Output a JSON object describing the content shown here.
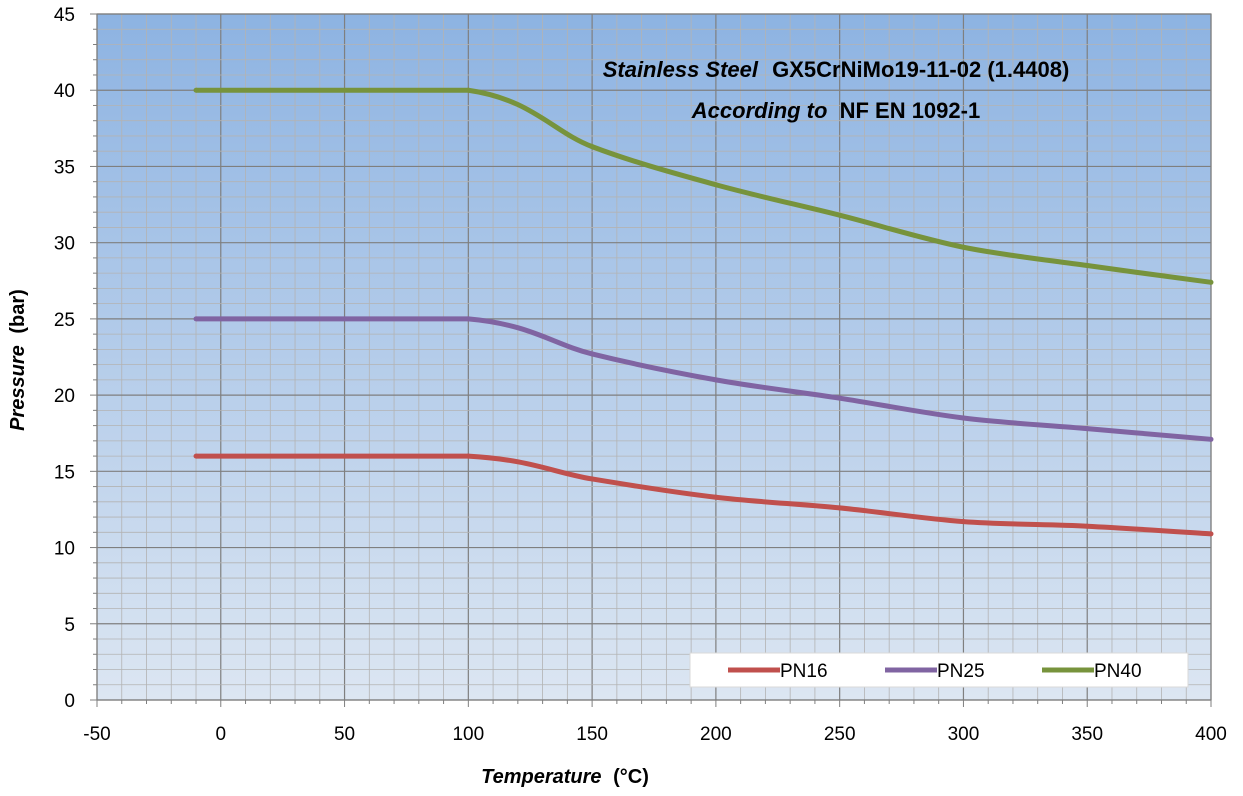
{
  "chart_data": {
    "type": "line",
    "title_line1_italic": "Stainless Steel",
    "title_line1_bold": "GX5CrNiMo19-11-02 (1.4408)",
    "title_line2_italic": "According to",
    "title_line2_bold": "NF EN 1092-1",
    "xlabel_italic": "Temperature",
    "xlabel_unit": "(°C)",
    "ylabel_italic": "Pressure",
    "ylabel_unit": "(bar)",
    "xlim": [
      -50,
      400
    ],
    "ylim": [
      0,
      45
    ],
    "x_major_step": 50,
    "x_minor_step": 10,
    "y_major_step": 5,
    "y_minor_step": 1,
    "grid": true,
    "legend_position": "bottom-right",
    "x_ticks": [
      "-50",
      "0",
      "50",
      "100",
      "150",
      "200",
      "250",
      "300",
      "350",
      "400"
    ],
    "y_ticks": [
      "0",
      "5",
      "10",
      "15",
      "20",
      "25",
      "30",
      "35",
      "40",
      "45"
    ],
    "background_gradient": [
      "#8db3e2",
      "#dce6f2"
    ],
    "series": [
      {
        "name": "PN16",
        "color": "#c0504d",
        "x": [
          -10,
          100,
          150,
          200,
          250,
          300,
          350,
          400
        ],
        "y": [
          16,
          16,
          14.5,
          13.3,
          12.6,
          11.7,
          11.4,
          10.9
        ]
      },
      {
        "name": "PN25",
        "color": "#8064a2",
        "x": [
          -10,
          100,
          150,
          200,
          250,
          300,
          350,
          400
        ],
        "y": [
          25,
          25,
          22.7,
          21.0,
          19.8,
          18.5,
          17.8,
          17.1
        ]
      },
      {
        "name": "PN40",
        "color": "#77933c",
        "x": [
          -10,
          100,
          150,
          200,
          250,
          300,
          350,
          400
        ],
        "y": [
          40,
          40,
          36.3,
          33.8,
          31.8,
          29.7,
          28.5,
          27.4
        ]
      }
    ]
  }
}
